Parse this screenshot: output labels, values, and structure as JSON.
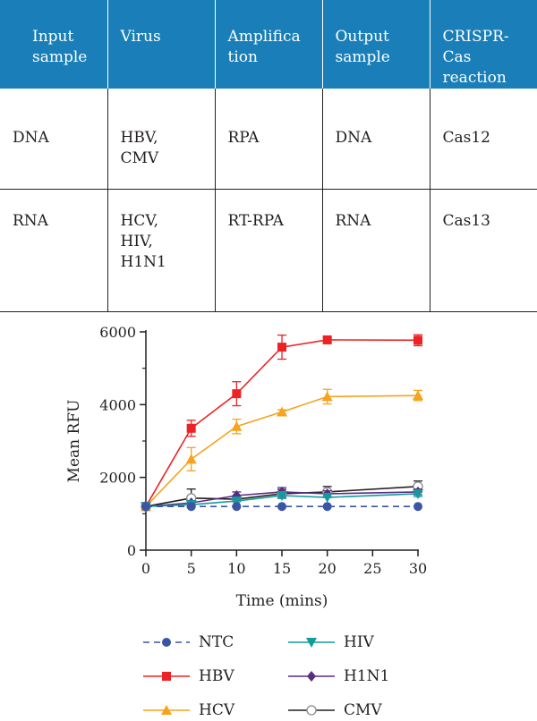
{
  "table": {
    "headers": [
      "Input sample",
      "Virus",
      "Amplifica tion",
      "Output sample",
      "CRISPR-Cas reaction"
    ],
    "header_lines": [
      [
        "Input",
        "sample"
      ],
      [
        "Virus"
      ],
      [
        "Amplifica",
        "tion"
      ],
      [
        "Output",
        "sample"
      ],
      [
        "CRISPR-Cas",
        "reaction"
      ]
    ],
    "header_color": "#1a7fb8",
    "rows": [
      [
        "DNA",
        "HBV,\nCMV",
        "RPA",
        "DNA",
        "Cas12"
      ],
      [
        "RNA",
        "HCV,\nHIV,\nH1N1",
        "RT-RPA",
        "RNA",
        "Cas13"
      ]
    ]
  },
  "chart_data": {
    "type": "line",
    "title": "",
    "xlabel": "Time (mins)",
    "ylabel": "Mean RFU",
    "x": [
      0,
      5,
      10,
      15,
      20,
      30
    ],
    "xticks": [
      "0",
      "5",
      "10",
      "15",
      "20",
      "25",
      "30"
    ],
    "xlim": [
      0,
      30
    ],
    "yticks": [
      "0",
      "2000",
      "4000",
      "6000"
    ],
    "ylim": [
      0,
      6000
    ],
    "grid": false,
    "legend_position": "bottom",
    "series": [
      {
        "name": "NTC",
        "color": "#3a55a4",
        "marker": "circle",
        "dash": true,
        "values": [
          1200,
          1200,
          1200,
          1200,
          1200,
          1200
        ],
        "err": [
          0,
          0,
          0,
          0,
          0,
          0
        ]
      },
      {
        "name": "HBV",
        "color": "#ed2224",
        "marker": "square",
        "dash": false,
        "values": [
          1200,
          3350,
          4300,
          5580,
          5780,
          5770
        ],
        "err": [
          0,
          220,
          330,
          330,
          60,
          150
        ]
      },
      {
        "name": "HCV",
        "color": "#f7a31c",
        "marker": "triangle-up",
        "dash": false,
        "values": [
          1200,
          2500,
          3400,
          3800,
          4220,
          4250
        ],
        "err": [
          0,
          320,
          200,
          60,
          200,
          140
        ]
      },
      {
        "name": "HIV",
        "color": "#159a9c",
        "marker": "triangle-down",
        "dash": false,
        "values": [
          1200,
          1250,
          1350,
          1500,
          1450,
          1550
        ],
        "err": [
          0,
          0,
          0,
          80,
          0,
          80
        ]
      },
      {
        "name": "H1N1",
        "color": "#5b2c83",
        "marker": "diamond",
        "dash": false,
        "values": [
          1200,
          1300,
          1500,
          1600,
          1550,
          1600
        ],
        "err": [
          0,
          60,
          100,
          120,
          80,
          80
        ]
      },
      {
        "name": "CMV",
        "color": "#231f20",
        "marker": "open-circle",
        "dash": false,
        "values": [
          1200,
          1430,
          1400,
          1550,
          1600,
          1750
        ],
        "err": [
          0,
          250,
          50,
          120,
          150,
          150
        ]
      }
    ],
    "legend_columns": [
      [
        "NTC",
        "HBV",
        "HCV"
      ],
      [
        "HIV",
        "H1N1",
        "CMV"
      ]
    ]
  }
}
